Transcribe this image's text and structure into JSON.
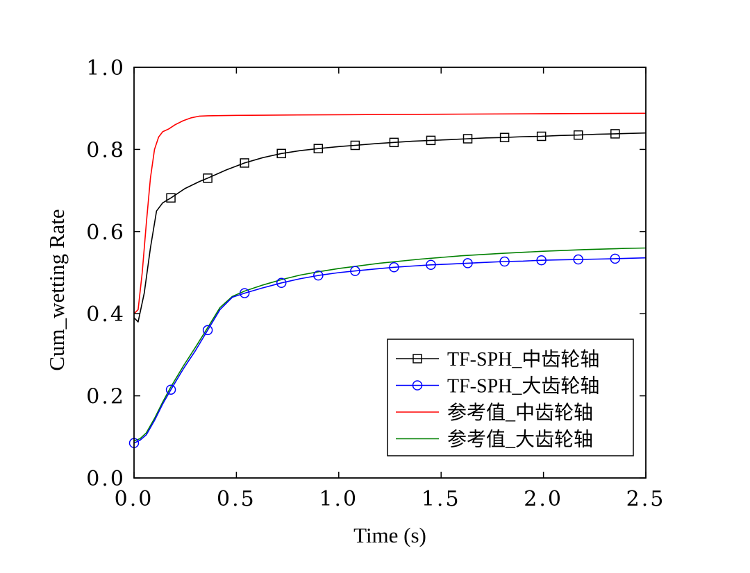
{
  "chart_data": {
    "type": "line",
    "xlabel": "Time (s)",
    "ylabel": "Cum_wetting Rate",
    "xlim": [
      0,
      2.5
    ],
    "ylim": [
      0,
      1.0
    ],
    "x_ticks": [
      0.0,
      0.5,
      1.0,
      1.5,
      2.0,
      2.5
    ],
    "y_ticks": [
      0.0,
      0.2,
      0.4,
      0.6,
      0.8,
      1.0
    ],
    "x_tick_labels": [
      "0.0",
      "0.5",
      "1.0",
      "1.5",
      "2.0",
      "2.5"
    ],
    "y_tick_labels": [
      "0.0",
      "0.2",
      "0.4",
      "0.6",
      "0.8",
      "1.0"
    ],
    "grid": false,
    "legend_position": "lower-right",
    "series": [
      {
        "name": "TF-SPH_中齿轮轴",
        "color": "#000000",
        "marker": "square",
        "x": [
          0.0,
          0.02,
          0.05,
          0.08,
          0.11,
          0.14,
          0.18,
          0.25,
          0.32,
          0.36,
          0.45,
          0.54,
          0.63,
          0.72,
          0.81,
          0.9,
          1.0,
          1.08,
          1.18,
          1.27,
          1.36,
          1.45,
          1.55,
          1.63,
          1.72,
          1.81,
          1.9,
          1.99,
          2.08,
          2.17,
          2.26,
          2.35,
          2.42,
          2.5
        ],
        "y": [
          0.39,
          0.38,
          0.45,
          0.56,
          0.65,
          0.67,
          0.682,
          0.705,
          0.722,
          0.73,
          0.75,
          0.767,
          0.78,
          0.79,
          0.797,
          0.802,
          0.807,
          0.81,
          0.814,
          0.817,
          0.82,
          0.822,
          0.824,
          0.826,
          0.828,
          0.829,
          0.831,
          0.832,
          0.834,
          0.835,
          0.837,
          0.838,
          0.839,
          0.84
        ],
        "marker_x": [
          0.18,
          0.36,
          0.54,
          0.72,
          0.9,
          1.08,
          1.27,
          1.45,
          1.63,
          1.81,
          1.99,
          2.17,
          2.35
        ]
      },
      {
        "name": "TF-SPH_大齿轮轴",
        "color": "#0000ff",
        "marker": "circle",
        "x": [
          0.0,
          0.03,
          0.06,
          0.1,
          0.14,
          0.18,
          0.24,
          0.3,
          0.36,
          0.42,
          0.48,
          0.54,
          0.63,
          0.72,
          0.81,
          0.9,
          1.0,
          1.08,
          1.18,
          1.27,
          1.36,
          1.45,
          1.55,
          1.63,
          1.72,
          1.81,
          1.9,
          1.99,
          2.08,
          2.17,
          2.26,
          2.35,
          2.42,
          2.5
        ],
        "y": [
          0.085,
          0.092,
          0.105,
          0.14,
          0.18,
          0.215,
          0.265,
          0.31,
          0.36,
          0.41,
          0.44,
          0.45,
          0.463,
          0.475,
          0.485,
          0.493,
          0.5,
          0.504,
          0.509,
          0.513,
          0.516,
          0.519,
          0.521,
          0.523,
          0.525,
          0.527,
          0.528,
          0.53,
          0.531,
          0.532,
          0.533,
          0.534,
          0.535,
          0.536
        ],
        "marker_x": [
          0.0,
          0.18,
          0.36,
          0.54,
          0.72,
          0.9,
          1.08,
          1.27,
          1.45,
          1.63,
          1.81,
          1.99,
          2.17,
          2.35
        ]
      },
      {
        "name": "参考值_中齿轮轴",
        "color": "#ff0000",
        "marker": "none",
        "x": [
          0.0,
          0.02,
          0.04,
          0.06,
          0.08,
          0.1,
          0.12,
          0.14,
          0.17,
          0.2,
          0.24,
          0.28,
          0.32,
          0.36,
          0.5,
          0.8,
          1.2,
          1.6,
          2.0,
          2.5
        ],
        "y": [
          0.4,
          0.41,
          0.5,
          0.62,
          0.73,
          0.8,
          0.83,
          0.843,
          0.85,
          0.86,
          0.87,
          0.877,
          0.881,
          0.882,
          0.883,
          0.884,
          0.885,
          0.886,
          0.887,
          0.888
        ]
      },
      {
        "name": "参考值_大齿轮轴",
        "color": "#008000",
        "marker": "none",
        "x": [
          0.0,
          0.03,
          0.06,
          0.1,
          0.14,
          0.18,
          0.24,
          0.3,
          0.36,
          0.42,
          0.48,
          0.54,
          0.63,
          0.72,
          0.81,
          0.9,
          1.0,
          1.2,
          1.4,
          1.6,
          1.8,
          2.0,
          2.2,
          2.4,
          2.5
        ],
        "y": [
          0.09,
          0.096,
          0.11,
          0.145,
          0.185,
          0.222,
          0.272,
          0.318,
          0.366,
          0.415,
          0.442,
          0.455,
          0.47,
          0.483,
          0.494,
          0.502,
          0.51,
          0.523,
          0.533,
          0.541,
          0.547,
          0.552,
          0.556,
          0.559,
          0.56
        ]
      }
    ]
  }
}
